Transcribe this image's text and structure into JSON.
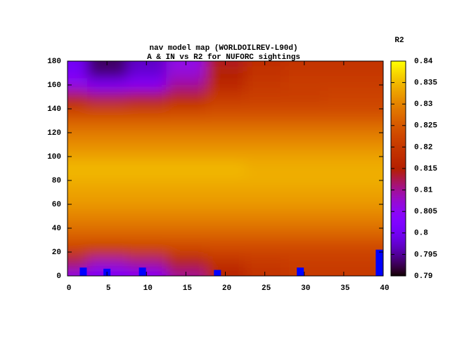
{
  "chart_data": {
    "type": "heatmap",
    "title": "nav model map (WORLDOILREV-L90d)",
    "subtitle": "A & IN vs R2 for NUFORC sightings",
    "colorbar_label": "R2",
    "x": [
      0,
      5,
      10,
      15,
      20,
      25,
      30,
      35,
      40
    ],
    "y": [
      180,
      170,
      160,
      150,
      140,
      130,
      120,
      110,
      100,
      90,
      80,
      70,
      60,
      50,
      40,
      30,
      20,
      10,
      0
    ],
    "z": [
      [
        0.8,
        0.793,
        0.797,
        0.806,
        0.814,
        0.818,
        0.819,
        0.819,
        0.819
      ],
      [
        0.801,
        0.794,
        0.798,
        0.807,
        0.815,
        0.819,
        0.82,
        0.82,
        0.82
      ],
      [
        0.806,
        0.802,
        0.804,
        0.81,
        0.817,
        0.82,
        0.821,
        0.821,
        0.821
      ],
      [
        0.814,
        0.812,
        0.813,
        0.816,
        0.82,
        0.821,
        0.821,
        0.822,
        0.822
      ],
      [
        0.821,
        0.821,
        0.821,
        0.822,
        0.823,
        0.823,
        0.823,
        0.823,
        0.823
      ],
      [
        0.826,
        0.826,
        0.826,
        0.826,
        0.826,
        0.826,
        0.826,
        0.826,
        0.826
      ],
      [
        0.829,
        0.829,
        0.829,
        0.829,
        0.829,
        0.829,
        0.829,
        0.829,
        0.829
      ],
      [
        0.831,
        0.831,
        0.831,
        0.831,
        0.831,
        0.831,
        0.831,
        0.831,
        0.831
      ],
      [
        0.833,
        0.833,
        0.833,
        0.833,
        0.833,
        0.833,
        0.833,
        0.833,
        0.833
      ],
      [
        0.835,
        0.835,
        0.835,
        0.835,
        0.835,
        0.834,
        0.834,
        0.834,
        0.834
      ],
      [
        0.834,
        0.834,
        0.834,
        0.834,
        0.834,
        0.834,
        0.834,
        0.834,
        0.834
      ],
      [
        0.833,
        0.833,
        0.833,
        0.833,
        0.833,
        0.833,
        0.833,
        0.833,
        0.833
      ],
      [
        0.832,
        0.832,
        0.832,
        0.832,
        0.832,
        0.832,
        0.832,
        0.832,
        0.832
      ],
      [
        0.83,
        0.83,
        0.83,
        0.83,
        0.83,
        0.83,
        0.83,
        0.83,
        0.83
      ],
      [
        0.828,
        0.828,
        0.828,
        0.828,
        0.828,
        0.828,
        0.828,
        0.828,
        0.828
      ],
      [
        0.825,
        0.825,
        0.825,
        0.825,
        0.825,
        0.825,
        0.825,
        0.825,
        0.825
      ],
      [
        0.82,
        0.819,
        0.82,
        0.821,
        0.822,
        0.822,
        0.822,
        0.822,
        0.822
      ],
      [
        0.812,
        0.808,
        0.81,
        0.814,
        0.818,
        0.82,
        0.821,
        0.821,
        0.821
      ],
      [
        0.806,
        0.802,
        0.804,
        0.81,
        0.816,
        0.819,
        0.82,
        0.82,
        0.82
      ]
    ],
    "xlim": [
      0,
      40
    ],
    "xticks": [
      0,
      5,
      10,
      15,
      20,
      25,
      30,
      35,
      40
    ],
    "ylim": [
      0,
      180
    ],
    "yticks": [
      0,
      20,
      40,
      60,
      80,
      100,
      120,
      140,
      160,
      180
    ],
    "cblim": [
      0.79,
      0.84
    ],
    "cbticks": [
      0.79,
      0.795,
      0.8,
      0.805,
      0.81,
      0.815,
      0.82,
      0.825,
      0.83,
      0.835,
      0.84
    ],
    "bars": {
      "color": "#0000ff",
      "x": [
        2,
        5,
        9.5,
        19,
        29.5,
        39.5
      ],
      "values": [
        7,
        6,
        7,
        5,
        7,
        22
      ]
    }
  }
}
